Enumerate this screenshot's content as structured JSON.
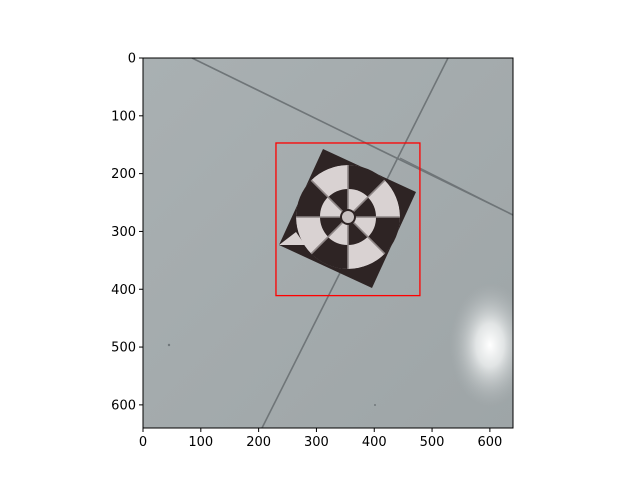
{
  "figure": {
    "x_axis": {
      "min": 0,
      "max": 640,
      "ticks": [
        "0",
        "100",
        "200",
        "300",
        "400",
        "500",
        "600"
      ]
    },
    "y_axis": {
      "min": 0,
      "max": 640,
      "inverted": true,
      "ticks": [
        "0",
        "100",
        "200",
        "300",
        "400",
        "500",
        "600"
      ]
    },
    "bounding_box": {
      "x_min": 230,
      "y_min": 147,
      "x_max": 479,
      "y_max": 411,
      "color": "#ff0000"
    },
    "photo_subject": "calibration-target-on-tiled-floor",
    "colors": {
      "floor": "#aab1b3",
      "target_dark": "#2e2424",
      "target_light": "#d9d2d2"
    }
  }
}
